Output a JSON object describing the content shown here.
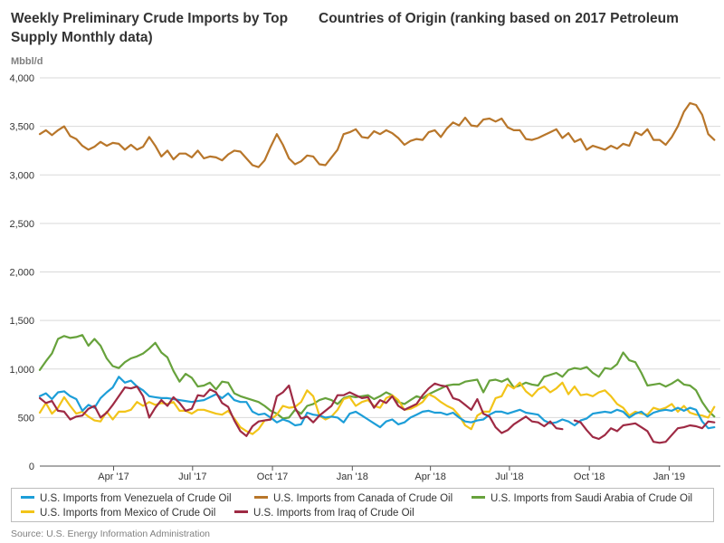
{
  "title_part1": "Weekly Preliminary Crude Imports by Top",
  "title_part2": "Countries of Origin (ranking based on 2017 Petroleum",
  "title_part3": "Supply Monthly data)",
  "unit_label": "Mbbl/d",
  "source": "Source: U.S. Energy Information Administration",
  "chart_data": {
    "type": "line",
    "title": "Weekly Preliminary Crude Imports by Top Countries of Origin (ranking based on 2017 Petroleum Supply Monthly data)",
    "ylabel": "Mbbl/d",
    "ylim": [
      0,
      4000
    ],
    "yticks": [
      0,
      500,
      1000,
      1500,
      2000,
      2500,
      3000,
      3500,
      4000
    ],
    "ytick_labels": [
      "0",
      "500",
      "1,000",
      "1,500",
      "2,000",
      "2,500",
      "3,000",
      "3,500",
      "4,000"
    ],
    "xlim": [
      "2017-01-06",
      "2019-03-01"
    ],
    "xticks": [
      "2017-04-01",
      "2017-07-01",
      "2017-10-01",
      "2018-01-01",
      "2018-04-01",
      "2018-07-01",
      "2018-10-01",
      "2019-01-01"
    ],
    "xtick_labels": [
      "Apr '17",
      "Jul '17",
      "Oct '17",
      "Jan '18",
      "Apr '18",
      "Jul '18",
      "Oct '18",
      "Jan '19"
    ],
    "grid": "horizontal",
    "legend_position": "bottom",
    "x": [
      "2017-01-06",
      "2017-01-13",
      "2017-01-20",
      "2017-01-27",
      "2017-02-03",
      "2017-02-10",
      "2017-02-17",
      "2017-02-24",
      "2017-03-03",
      "2017-03-10",
      "2017-03-17",
      "2017-03-24",
      "2017-03-31",
      "2017-04-07",
      "2017-04-14",
      "2017-04-21",
      "2017-04-28",
      "2017-05-05",
      "2017-05-12",
      "2017-05-19",
      "2017-05-26",
      "2017-06-02",
      "2017-06-09",
      "2017-06-16",
      "2017-06-23",
      "2017-06-30",
      "2017-07-07",
      "2017-07-14",
      "2017-07-21",
      "2017-07-28",
      "2017-08-04",
      "2017-08-11",
      "2017-08-18",
      "2017-08-25",
      "2017-09-01",
      "2017-09-08",
      "2017-09-15",
      "2017-09-22",
      "2017-09-29",
      "2017-10-06",
      "2017-10-13",
      "2017-10-20",
      "2017-10-27",
      "2017-11-03",
      "2017-11-10",
      "2017-11-17",
      "2017-11-24",
      "2017-12-01",
      "2017-12-08",
      "2017-12-15",
      "2017-12-22",
      "2017-12-29",
      "2018-01-05",
      "2018-01-12",
      "2018-01-19",
      "2018-01-26",
      "2018-02-02",
      "2018-02-09",
      "2018-02-16",
      "2018-02-23",
      "2018-03-02",
      "2018-03-09",
      "2018-03-16",
      "2018-03-23",
      "2018-03-30",
      "2018-04-06",
      "2018-04-13",
      "2018-04-20",
      "2018-04-27",
      "2018-05-04",
      "2018-05-11",
      "2018-05-18",
      "2018-05-25",
      "2018-06-01",
      "2018-06-08",
      "2018-06-15",
      "2018-06-22",
      "2018-06-29",
      "2018-07-06",
      "2018-07-13",
      "2018-07-20",
      "2018-07-27",
      "2018-08-03",
      "2018-08-10",
      "2018-08-17",
      "2018-08-24",
      "2018-08-31",
      "2018-09-07",
      "2018-09-14",
      "2018-09-21",
      "2018-09-28",
      "2018-10-05",
      "2018-10-12",
      "2018-10-19",
      "2018-10-26",
      "2018-11-02",
      "2018-11-09",
      "2018-11-16",
      "2018-11-23",
      "2018-11-30",
      "2018-12-07",
      "2018-12-14",
      "2018-12-21",
      "2018-12-28",
      "2019-01-04",
      "2019-01-11",
      "2019-01-18",
      "2019-01-25",
      "2019-02-01",
      "2019-02-08",
      "2019-02-15",
      "2019-02-22"
    ],
    "series": [
      {
        "name": "U.S. Imports from Venezuela of Crude Oil",
        "color": "#1d9ed8",
        "values": [
          720,
          750,
          690,
          760,
          770,
          720,
          690,
          570,
          630,
          600,
          700,
          760,
          810,
          920,
          860,
          880,
          820,
          780,
          720,
          710,
          700,
          700,
          690,
          680,
          670,
          660,
          670,
          680,
          710,
          740,
          700,
          750,
          680,
          660,
          660,
          560,
          530,
          540,
          500,
          450,
          480,
          460,
          420,
          430,
          550,
          530,
          520,
          500,
          510,
          500,
          450,
          540,
          560,
          520,
          480,
          440,
          400,
          460,
          480,
          430,
          450,
          500,
          530,
          560,
          570,
          550,
          550,
          530,
          550,
          500,
          460,
          450,
          470,
          480,
          530,
          560,
          560,
          540,
          560,
          580,
          550,
          540,
          530,
          470,
          440,
          450,
          480,
          460,
          420,
          470,
          490,
          540,
          550,
          560,
          550,
          580,
          560,
          500,
          540,
          560,
          510,
          550,
          570,
          580,
          570,
          600,
          570,
          600,
          580,
          460,
          390,
          400
        ]
      },
      {
        "name": "U.S. Imports from Canada of Crude Oil",
        "color": "#b8762a",
        "values": [
          3420,
          3460,
          3410,
          3460,
          3500,
          3400,
          3370,
          3300,
          3260,
          3290,
          3340,
          3300,
          3330,
          3320,
          3260,
          3310,
          3260,
          3290,
          3390,
          3300,
          3190,
          3250,
          3160,
          3220,
          3220,
          3180,
          3250,
          3170,
          3190,
          3180,
          3150,
          3210,
          3250,
          3240,
          3170,
          3100,
          3080,
          3150,
          3290,
          3420,
          3310,
          3170,
          3110,
          3140,
          3200,
          3190,
          3110,
          3100,
          3180,
          3260,
          3420,
          3440,
          3470,
          3390,
          3380,
          3450,
          3420,
          3460,
          3430,
          3380,
          3310,
          3350,
          3370,
          3360,
          3440,
          3460,
          3390,
          3480,
          3540,
          3510,
          3590,
          3510,
          3500,
          3570,
          3580,
          3550,
          3580,
          3490,
          3460,
          3460,
          3370,
          3360,
          3380,
          3410,
          3440,
          3470,
          3380,
          3430,
          3340,
          3370,
          3260,
          3300,
          3280,
          3260,
          3300,
          3270,
          3320,
          3300,
          3440,
          3410,
          3470,
          3360,
          3360,
          3310,
          3390,
          3500,
          3650,
          3740,
          3720,
          3620,
          3420,
          3360
        ]
      },
      {
        "name": "U.S. Imports from Saudi Arabia of Crude Oil",
        "color": "#67a23c",
        "values": [
          990,
          1080,
          1160,
          1310,
          1340,
          1320,
          1330,
          1350,
          1240,
          1310,
          1240,
          1110,
          1030,
          1010,
          1070,
          1110,
          1130,
          1160,
          1210,
          1270,
          1170,
          1120,
          980,
          870,
          950,
          910,
          820,
          830,
          860,
          790,
          870,
          860,
          750,
          720,
          700,
          680,
          660,
          620,
          570,
          540,
          490,
          500,
          580,
          540,
          620,
          640,
          680,
          700,
          680,
          640,
          700,
          720,
          710,
          720,
          730,
          690,
          720,
          760,
          730,
          660,
          640,
          680,
          720,
          700,
          740,
          770,
          800,
          830,
          840,
          840,
          870,
          880,
          890,
          760,
          880,
          890,
          870,
          900,
          810,
          830,
          860,
          840,
          830,
          920,
          940,
          960,
          920,
          990,
          1010,
          1000,
          1020,
          960,
          920,
          1010,
          1000,
          1050,
          1170,
          1090,
          1070,
          960,
          830,
          840,
          850,
          820,
          850,
          890,
          840,
          830,
          780,
          660,
          570,
          510
        ]
      },
      {
        "name": "U.S. Imports from Mexico of Crude Oil",
        "color": "#f2c419",
        "values": [
          550,
          650,
          540,
          600,
          710,
          620,
          540,
          560,
          510,
          470,
          460,
          560,
          480,
          560,
          560,
          580,
          660,
          620,
          660,
          630,
          650,
          640,
          660,
          570,
          570,
          540,
          580,
          580,
          560,
          540,
          530,
          570,
          490,
          400,
          360,
          330,
          380,
          470,
          480,
          530,
          620,
          600,
          610,
          660,
          780,
          720,
          520,
          480,
          510,
          580,
          690,
          710,
          620,
          660,
          680,
          620,
          600,
          700,
          730,
          680,
          580,
          590,
          620,
          660,
          740,
          710,
          660,
          620,
          590,
          520,
          420,
          380,
          520,
          560,
          560,
          700,
          720,
          840,
          800,
          860,
          770,
          720,
          790,
          820,
          760,
          800,
          860,
          740,
          820,
          730,
          740,
          720,
          760,
          780,
          720,
          640,
          600,
          520,
          560,
          540,
          530,
          600,
          580,
          600,
          640,
          560,
          620,
          550,
          530,
          520,
          500,
          610
        ]
      },
      {
        "name": "U.S. Imports from Iraq of Crude Oil",
        "color": "#9e2a44",
        "values": [
          700,
          650,
          670,
          570,
          560,
          480,
          510,
          520,
          590,
          620,
          500,
          550,
          630,
          720,
          810,
          800,
          820,
          720,
          500,
          600,
          680,
          620,
          710,
          650,
          570,
          590,
          730,
          720,
          790,
          760,
          650,
          610,
          470,
          360,
          310,
          410,
          460,
          470,
          480,
          720,
          760,
          830,
          600,
          490,
          510,
          450,
          520,
          570,
          620,
          730,
          730,
          760,
          730,
          700,
          710,
          600,
          680,
          650,
          720,
          620,
          580,
          610,
          640,
          730,
          800,
          850,
          830,
          820,
          700,
          680,
          630,
          580,
          690,
          540,
          510,
          400,
          340,
          370,
          430,
          470,
          510,
          460,
          450,
          410,
          460,
          390,
          380,
          null,
          470,
          450,
          370,
          300,
          280,
          320,
          390,
          360,
          420,
          430,
          440,
          400,
          360,
          250,
          240,
          250,
          320,
          390,
          400,
          420,
          410,
          390,
          460,
          450
        ]
      }
    ]
  },
  "legend": [
    {
      "label": "U.S. Imports from Venezuela of Crude Oil",
      "color": "#1d9ed8"
    },
    {
      "label": "U.S. Imports from Canada of Crude Oil",
      "color": "#b8762a"
    },
    {
      "label": "U.S. Imports from Saudi Arabia of Crude Oil",
      "color": "#67a23c"
    },
    {
      "label": "U.S. Imports from Mexico of Crude Oil",
      "color": "#f2c419"
    },
    {
      "label": "U.S. Imports from Iraq of Crude Oil",
      "color": "#9e2a44"
    }
  ]
}
